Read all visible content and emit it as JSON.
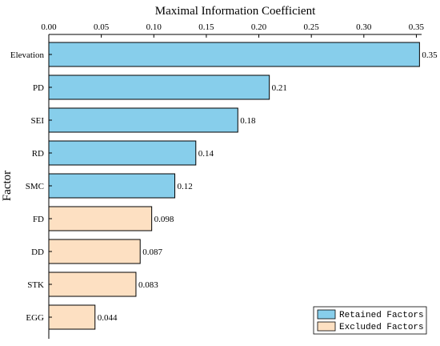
{
  "chart_data": {
    "type": "bar",
    "orientation": "horizontal",
    "xlabel": "Maximal Information Coefficient",
    "ylabel": "Factor",
    "xlim": [
      0,
      0.355
    ],
    "x_ticks": [
      "0.00",
      "0.05",
      "0.10",
      "0.15",
      "0.20",
      "0.25",
      "0.30",
      "0.35"
    ],
    "x_axis_position": "top",
    "grid": false,
    "categories": [
      "Elevation",
      "PD",
      "SEI",
      "RD",
      "SMC",
      "FD",
      "DD",
      "STK",
      "EGG"
    ],
    "values": [
      0.353,
      0.21,
      0.18,
      0.14,
      0.12,
      0.098,
      0.087,
      0.083,
      0.044
    ],
    "data_labels": [
      "0.35",
      "0.21",
      "0.18",
      "0.14",
      "0.12",
      "0.098",
      "0.087",
      "0.083",
      "0.044"
    ],
    "groups": [
      "Retained Factors",
      "Retained Factors",
      "Retained Factors",
      "Retained Factors",
      "Retained Factors",
      "Excluded Factors",
      "Excluded Factors",
      "Excluded Factors",
      "Excluded Factors"
    ],
    "legend": {
      "placement": "bottom-right",
      "entries": [
        {
          "name": "Retained Factors",
          "color": "#87ceeb"
        },
        {
          "name": "Excluded Factors",
          "color": "#fde0c2"
        }
      ]
    },
    "bar_edge_color": "#000000"
  }
}
